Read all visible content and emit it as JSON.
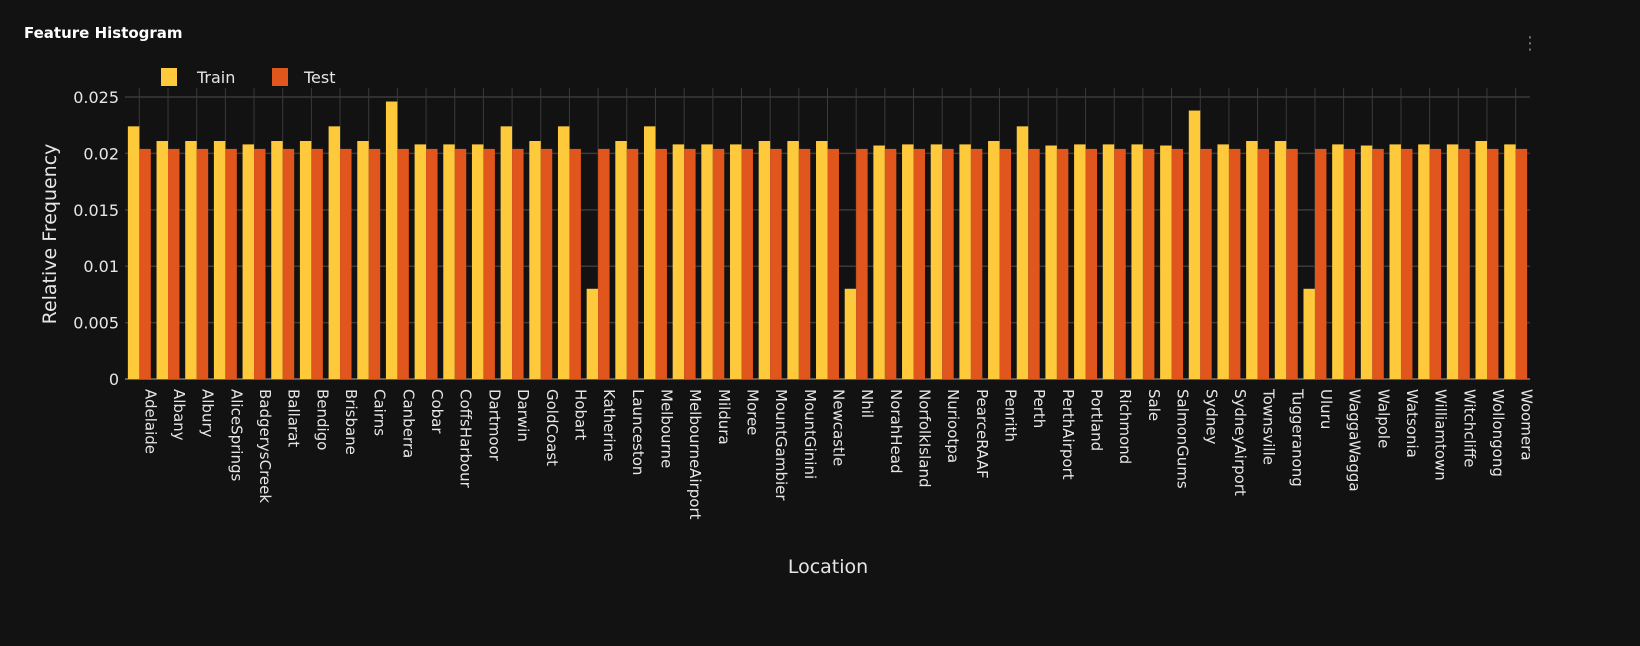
{
  "card": {
    "title": "Feature Histogram",
    "menu_icon": "more-vertical-icon"
  },
  "colors": {
    "train": "#ffc93c",
    "test": "#e0561c",
    "grid": "#3a3a3a",
    "text": "#e6e6e6"
  },
  "chart_data": {
    "type": "bar",
    "xlabel": "Location",
    "ylabel": "Relative Frequency",
    "ylim": [
      0,
      0.0258
    ],
    "yticks": [
      0,
      0.005,
      0.01,
      0.015,
      0.02,
      0.025
    ],
    "ytick_labels": [
      "0",
      "0.005",
      "0.01",
      "0.015",
      "0.02",
      "0.025"
    ],
    "grid": true,
    "legend_position": "top-left",
    "categories": [
      "Adelaide",
      "Albany",
      "Albury",
      "AliceSprings",
      "BadgerysCreek",
      "Ballarat",
      "Bendigo",
      "Brisbane",
      "Cairns",
      "Canberra",
      "Cobar",
      "CoffsHarbour",
      "Dartmoor",
      "Darwin",
      "GoldCoast",
      "Hobart",
      "Katherine",
      "Launceston",
      "Melbourne",
      "MelbourneAirport",
      "Mildura",
      "Moree",
      "MountGambier",
      "MountGinini",
      "Newcastle",
      "Nhil",
      "NorahHead",
      "NorfolkIsland",
      "Nuriootpa",
      "PearceRAAF",
      "Penrith",
      "Perth",
      "PerthAirport",
      "Portland",
      "Richmond",
      "Sale",
      "SalmonGums",
      "Sydney",
      "SydneyAirport",
      "Townsville",
      "Tuggeranong",
      "Uluru",
      "WaggaWagga",
      "Walpole",
      "Watsonia",
      "Williamtown",
      "Witchcliffe",
      "Wollongong",
      "Woomera"
    ],
    "series": [
      {
        "name": "Train",
        "values": [
          0.0224,
          0.0211,
          0.0211,
          0.0211,
          0.0208,
          0.0211,
          0.0211,
          0.0224,
          0.0211,
          0.0246,
          0.0208,
          0.0208,
          0.0208,
          0.0224,
          0.0211,
          0.0224,
          0.008,
          0.0211,
          0.0224,
          0.0208,
          0.0208,
          0.0208,
          0.0211,
          0.0211,
          0.0211,
          0.008,
          0.0207,
          0.0208,
          0.0208,
          0.0208,
          0.0211,
          0.0224,
          0.0207,
          0.0208,
          0.0208,
          0.0208,
          0.0207,
          0.0238,
          0.0208,
          0.0211,
          0.0211,
          0.008,
          0.0208,
          0.0207,
          0.0208,
          0.0208,
          0.0208,
          0.0211,
          0.0208
        ]
      },
      {
        "name": "Test",
        "values": [
          0.0204,
          0.0204,
          0.0204,
          0.0204,
          0.0204,
          0.0204,
          0.0204,
          0.0204,
          0.0204,
          0.0204,
          0.0204,
          0.0204,
          0.0204,
          0.0204,
          0.0204,
          0.0204,
          0.0204,
          0.0204,
          0.0204,
          0.0204,
          0.0204,
          0.0204,
          0.0204,
          0.0204,
          0.0204,
          0.0204,
          0.0204,
          0.0204,
          0.0204,
          0.0204,
          0.0204,
          0.0204,
          0.0204,
          0.0204,
          0.0204,
          0.0204,
          0.0204,
          0.0204,
          0.0204,
          0.0204,
          0.0204,
          0.0204,
          0.0204,
          0.0204,
          0.0204,
          0.0204,
          0.0204,
          0.0204,
          0.0204
        ]
      }
    ]
  }
}
